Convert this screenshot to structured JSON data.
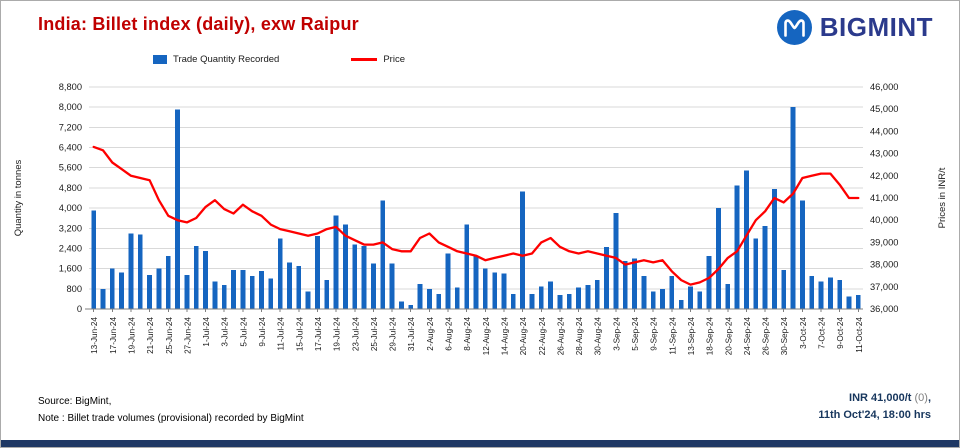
{
  "header": {
    "title": "India: Billet index (daily), exw Raipur"
  },
  "logo": {
    "text": "BIGMINT"
  },
  "legend": [
    {
      "label": "Trade Quantity Recorded",
      "type": "bar"
    },
    {
      "label": "Price",
      "type": "line"
    }
  ],
  "axes": {
    "left_title": "Quantity in tonnes",
    "right_title": "Prices in INR/t",
    "left_ticks": [
      "0",
      "800",
      "1,600",
      "2,400",
      "3,200",
      "4,000",
      "4,800",
      "5,600",
      "6,400",
      "7,200",
      "8,000",
      "8,800"
    ],
    "right_ticks": [
      "36,000",
      "37,000",
      "38,000",
      "39,000",
      "40,000",
      "41,000",
      "42,000",
      "43,000",
      "44,000",
      "45,000",
      "46,000"
    ]
  },
  "footer": {
    "source_line1": "Source: BigMint,",
    "source_line2": "Note : Billet trade volumes (provisional) recorded by BigMint",
    "price_main": "INR 41,000/t",
    "price_change": "(0)",
    "price_suffix": ",",
    "timestamp": "11th Oct'24, 18:00 hrs"
  },
  "colors": {
    "bar": "#1565c0",
    "price_line": "#fe0000",
    "title": "#c00000",
    "navy": "#17365d",
    "grid": "#d9d9d9",
    "axis": "#808080",
    "accent_strip": "#1f3864",
    "logo_blue": "#2b3a8c"
  },
  "chart_data": {
    "type": "bar",
    "subtype": "bar-line-combo",
    "title": "India: Billet index (daily), exw Raipur",
    "bar_series_name": "Trade Quantity Recorded",
    "line_series_name": "Price",
    "ylabel_left": "Quantity in tonnes",
    "ylabel_right": "Prices in INR/t",
    "ylim_left": [
      0,
      8800
    ],
    "ylim_right": [
      36000,
      46000
    ],
    "grid": "horizontal",
    "legend_position": "top",
    "label_stride": 2,
    "x_labels": [
      "13-Jun-24",
      "17-Jun-24",
      "19-Jun-24",
      "21-Jun-24",
      "25-Jun-24",
      "27-Jun-24",
      "1-Jul-24",
      "3-Jul-24",
      "5-Jul-24",
      "9-Jul-24",
      "11-Jul-24",
      "15-Jul-24",
      "17-Jul-24",
      "19-Jul-24",
      "23-Jul-24",
      "25-Jul-24",
      "29-Jul-24",
      "31-Jul-24",
      "2-Aug-24",
      "6-Aug-24",
      "8-Aug-24",
      "12-Aug-24",
      "14-Aug-24",
      "20-Aug-24",
      "22-Aug-24",
      "26-Aug-24",
      "28-Aug-24",
      "30-Aug-24",
      "3-Sep-24",
      "5-Sep-24",
      "9-Sep-24",
      "11-Sep-24",
      "13-Sep-24",
      "18-Sep-24",
      "20-Sep-24",
      "24-Sep-24",
      "26-Sep-24",
      "30-Sep-24",
      "3-Oct-24",
      "7-Oct-24",
      "9-Oct-24",
      "11-Oct-24"
    ],
    "quantities": [
      3900,
      800,
      1600,
      1450,
      3000,
      2950,
      1350,
      1600,
      2100,
      7900,
      1350,
      2500,
      2300,
      1100,
      950,
      1550,
      1550,
      1300,
      1500,
      1200,
      2800,
      1850,
      1700,
      700,
      2900,
      1150,
      3700,
      3350,
      2550,
      2500,
      1800,
      4300,
      1800,
      300,
      150,
      1000,
      800,
      600,
      2200,
      850,
      3350,
      2100,
      1600,
      1450,
      1400,
      600,
      4650,
      600,
      900,
      1100,
      550,
      600,
      850,
      950,
      1150,
      2450,
      3800,
      1900,
      2000,
      1300,
      700,
      800,
      1300,
      350,
      900,
      700,
      2100,
      4000,
      1000,
      4900,
      5500,
      2800,
      3300,
      4750,
      1550,
      8000,
      4300,
      1300,
      1100,
      1250,
      1150,
      500,
      550
    ],
    "prices": [
      43300,
      43150,
      42600,
      42300,
      42000,
      41900,
      41800,
      40900,
      40200,
      40000,
      39900,
      40100,
      40600,
      40900,
      40500,
      40300,
      40700,
      40400,
      40200,
      39800,
      39600,
      39500,
      39400,
      39300,
      39400,
      39600,
      39700,
      39300,
      39100,
      38900,
      38900,
      39000,
      38700,
      38600,
      38600,
      39200,
      39400,
      39000,
      38800,
      38600,
      38500,
      38400,
      38200,
      38300,
      38400,
      38500,
      38400,
      38500,
      39000,
      39200,
      38800,
      38600,
      38500,
      38600,
      38500,
      38400,
      38300,
      38000,
      38100,
      38200,
      38100,
      38200,
      37700,
      37300,
      37100,
      37200,
      37400,
      37800,
      38300,
      38600,
      39300,
      40000,
      40400,
      41000,
      40800,
      41200,
      41900,
      42000,
      42100,
      42100,
      41600,
      41000,
      41000
    ]
  }
}
